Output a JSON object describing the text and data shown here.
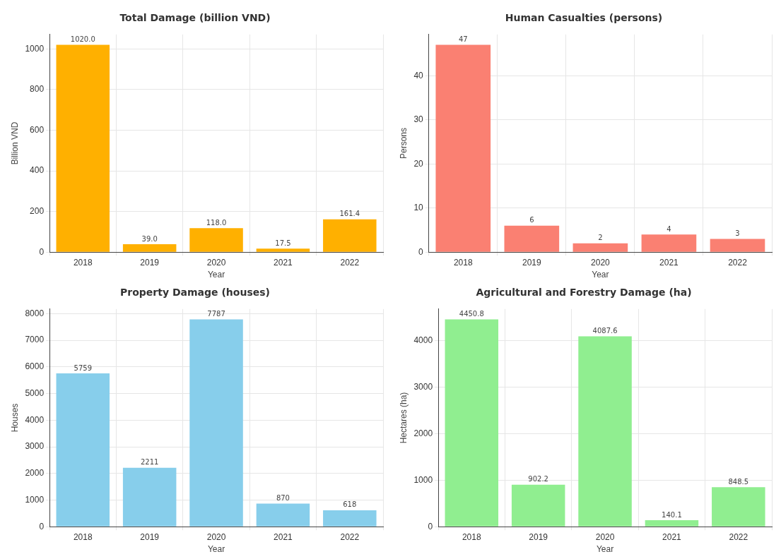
{
  "chart_data": [
    {
      "type": "bar",
      "title": "Total Damage (billion VND)",
      "xlabel": "Year",
      "ylabel": "Billion VND",
      "categories": [
        "2018",
        "2019",
        "2020",
        "2021",
        "2022"
      ],
      "values": [
        1020.0,
        39.0,
        118.0,
        17.5,
        161.4
      ],
      "value_labels": [
        "1020.0",
        "39.0",
        "118.0",
        "17.5",
        "161.4"
      ],
      "color": "#ffb000",
      "ylim": [
        0,
        1071
      ],
      "yticks": [
        0,
        200,
        400,
        600,
        800,
        1000
      ],
      "grid": true
    },
    {
      "type": "bar",
      "title": "Human Casualties (persons)",
      "xlabel": "Year",
      "ylabel": "Persons",
      "categories": [
        "2018",
        "2019",
        "2020",
        "2021",
        "2022"
      ],
      "values": [
        47,
        6,
        2,
        4,
        3
      ],
      "data_labels": true,
      "color": "#fa8072",
      "ylim": [
        0,
        49.35
      ],
      "yticks": [
        0,
        10,
        20,
        30,
        40
      ],
      "grid": true
    },
    {
      "type": "bar",
      "title": "Property Damage (houses)",
      "xlabel": "Year",
      "ylabel": "Houses",
      "categories": [
        "2018",
        "2019",
        "2020",
        "2021",
        "2022"
      ],
      "values": [
        5759,
        2211,
        7787,
        870,
        618
      ],
      "data_labels": true,
      "color": "#87ceeb",
      "ylim": [
        0,
        8176
      ],
      "yticks": [
        0,
        1000,
        2000,
        3000,
        4000,
        5000,
        6000,
        7000,
        8000
      ],
      "grid": true
    },
    {
      "type": "bar",
      "title": "Agricultural and Forestry Damage (ha)",
      "xlabel": "Year",
      "ylabel": "Hectares (ha)",
      "categories": [
        "2018",
        "2019",
        "2020",
        "2021",
        "2022"
      ],
      "values": [
        4450.8,
        902.2,
        4087.6,
        140.1,
        848.5
      ],
      "data_labels": true,
      "color": "#90ee90",
      "ylim": [
        0,
        4673
      ],
      "yticks": [
        0,
        1000,
        2000,
        3000,
        4000
      ],
      "grid": true
    }
  ]
}
